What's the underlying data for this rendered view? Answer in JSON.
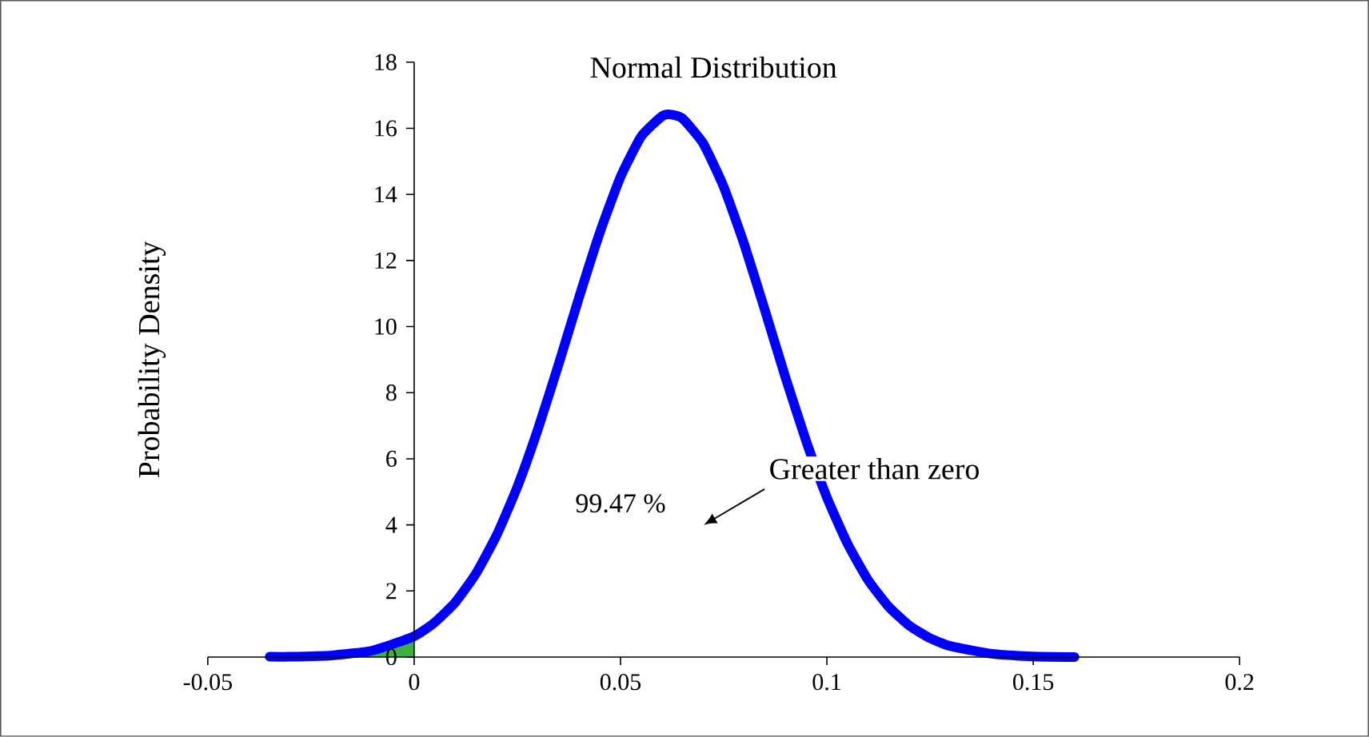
{
  "chart_data": {
    "type": "line",
    "title": "Normal Distribution",
    "ylabel": "Probability Density",
    "xlim": [
      -0.05,
      0.2
    ],
    "ylim": [
      0,
      18
    ],
    "xticks": [
      -0.05,
      0,
      0.05,
      0.1,
      0.15,
      0.2
    ],
    "yticks": [
      0,
      2,
      4,
      6,
      8,
      10,
      12,
      14,
      16,
      18
    ],
    "marker": "none",
    "line_style": "solid",
    "series": [
      {
        "type": "area",
        "color": "#3cb043",
        "x": [
          -0.035,
          -0.03,
          -0.02,
          -0.01,
          0
        ],
        "values": [
          0.01,
          0.01,
          0.05,
          0.2,
          0.63
        ]
      },
      {
        "color": "#0000ff",
        "x": [
          -0.035,
          -0.03,
          -0.02,
          -0.01,
          0,
          0.005,
          0.01,
          0.015,
          0.02,
          0.025,
          0.03,
          0.035,
          0.04,
          0.045,
          0.05,
          0.055,
          0.06,
          0.062,
          0.065,
          0.07,
          0.075,
          0.08,
          0.085,
          0.09,
          0.095,
          0.1,
          0.105,
          0.11,
          0.115,
          0.12,
          0.125,
          0.13,
          0.14,
          0.15,
          0.16
        ],
        "values": [
          0.01,
          0.01,
          0.05,
          0.2,
          0.63,
          1.05,
          1.66,
          2.53,
          3.69,
          5.15,
          6.9,
          8.86,
          10.9,
          12.85,
          14.53,
          15.75,
          16.36,
          16.42,
          16.3,
          15.55,
          14.23,
          12.48,
          10.49,
          8.45,
          6.53,
          4.83,
          3.43,
          2.33,
          1.52,
          0.95,
          0.57,
          0.33,
          0.1,
          0.02,
          0.0
        ]
      }
    ],
    "annotations": [
      "99.47 %",
      "Greater than zero"
    ]
  }
}
